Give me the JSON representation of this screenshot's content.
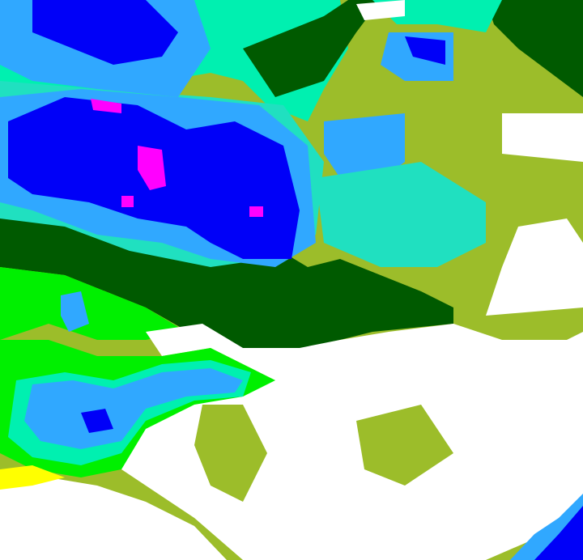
{
  "map": {
    "type": "classified-raster",
    "palette": {
      "white": "#ffffff",
      "yellow": "#ffff00",
      "olive": "#9cbd2a",
      "bright_green": "#00f000",
      "dark_green": "#005a00",
      "aquamarine": "#00f0b0",
      "teal": "#20e0c0",
      "light_blue": "#30a8ff",
      "blue": "#0000f8",
      "magenta": "#ff00ff"
    }
  }
}
